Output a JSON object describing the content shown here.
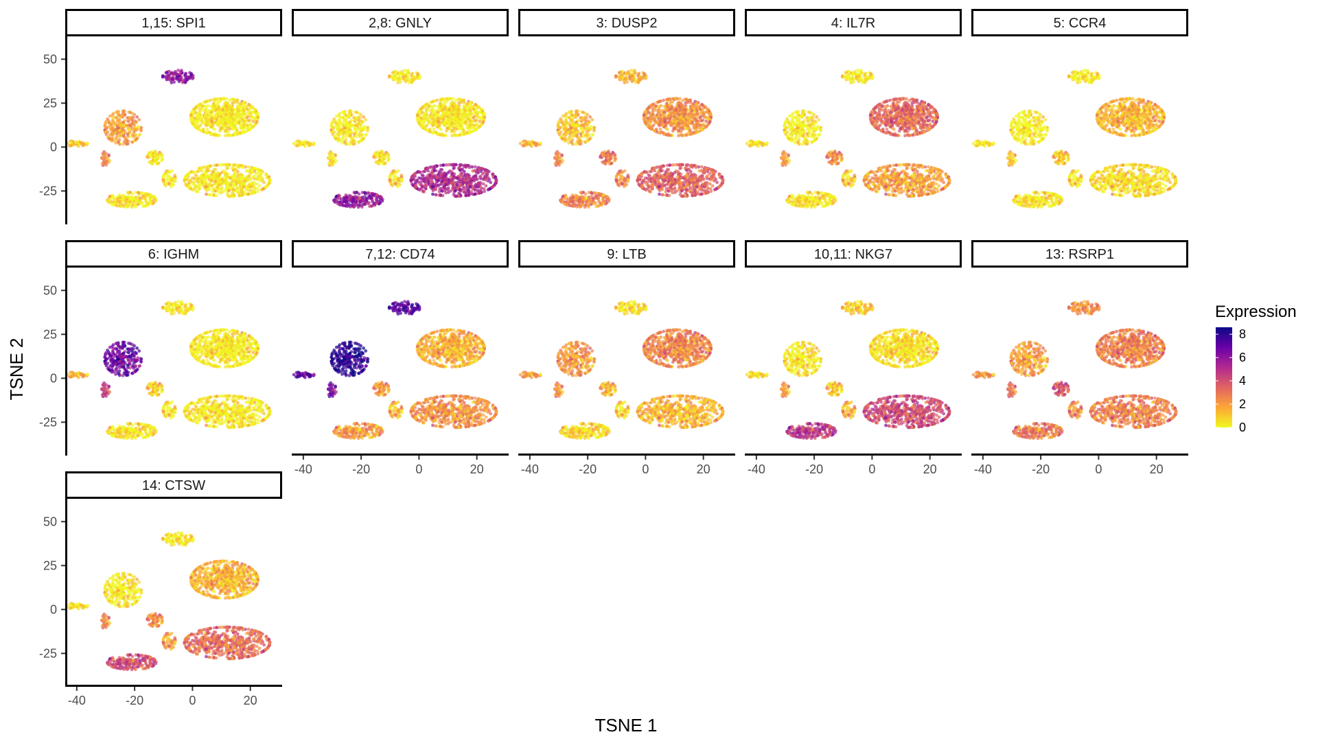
{
  "chart_data": {
    "type": "scatter",
    "subtype": "faceted tSNE feature plot",
    "xlabel": "TSNE 1",
    "ylabel": "TSNE 2",
    "xlim": [
      -44,
      31
    ],
    "ylim": [
      -44,
      63
    ],
    "x_ticks": [
      -40,
      -20,
      0,
      20
    ],
    "y_ticks": [
      50,
      25,
      0,
      -25
    ],
    "x_tick_labels": [
      "-40",
      "-20",
      "0",
      "20"
    ],
    "y_tick_labels": [
      "50",
      "25",
      "0",
      "-25"
    ],
    "legend": {
      "title": "Expression",
      "position": "right",
      "range": [
        0,
        8.6
      ],
      "ticks": [
        8,
        6,
        4,
        2,
        0
      ],
      "tick_labels": [
        "8",
        "6",
        "4",
        "2",
        "0"
      ],
      "colors": [
        "#f0f921",
        "#fca636",
        "#e16462",
        "#b12a90",
        "#6a00a8",
        "#0d0887"
      ]
    },
    "clusters": [
      {
        "name": "A",
        "center": [
          -5,
          40
        ],
        "spread": [
          5,
          3.5
        ]
      },
      {
        "name": "B",
        "center": [
          -24,
          11
        ],
        "spread": [
          6,
          9
        ]
      },
      {
        "name": "C",
        "center": [
          -40,
          2
        ],
        "spread": [
          3.5,
          1.5
        ]
      },
      {
        "name": "D",
        "center": [
          -30,
          -7
        ],
        "spread": [
          1.3,
          4.5
        ]
      },
      {
        "name": "E",
        "center": [
          -13,
          -6
        ],
        "spread": [
          2.5,
          3.5
        ]
      },
      {
        "name": "F",
        "center": [
          -8,
          -18
        ],
        "spread": [
          2,
          4.5
        ]
      },
      {
        "name": "G",
        "center": [
          -21,
          -30
        ],
        "spread": [
          8,
          4
        ]
      },
      {
        "name": "H",
        "center": [
          11,
          17
        ],
        "spread": [
          11,
          10
        ]
      },
      {
        "name": "I",
        "center": [
          12,
          -19
        ],
        "spread": [
          14,
          8.5
        ]
      }
    ],
    "facets": [
      {
        "label": "1,15: SPI1",
        "levels": {
          "A": 6,
          "B": 2,
          "C": 1,
          "D": 2.5,
          "E": 0.3,
          "F": 0.2,
          "G": 0.3,
          "H": 0.2,
          "I": 0.3
        }
      },
      {
        "label": "2,8: GNLY",
        "levels": {
          "A": 0.3,
          "B": 0.3,
          "C": 0.3,
          "D": 0.5,
          "E": 0.5,
          "F": 0.8,
          "G": 5.8,
          "H": 0.3,
          "I": 5.2
        }
      },
      {
        "label": "3: DUSP2",
        "levels": {
          "A": 1.5,
          "B": 1.2,
          "C": 1.5,
          "D": 2.5,
          "E": 3,
          "F": 2.5,
          "G": 2.5,
          "H": 2.3,
          "I": 3.5
        }
      },
      {
        "label": "4: IL7R",
        "levels": {
          "A": 0.2,
          "B": 0.2,
          "C": 0.4,
          "D": 2,
          "E": 2.5,
          "F": 1,
          "G": 0.3,
          "H": 3.3,
          "I": 2
        }
      },
      {
        "label": "5: CCR4",
        "levels": {
          "A": 0.2,
          "B": 0.1,
          "C": 0.2,
          "D": 1,
          "E": 1.2,
          "F": 0.5,
          "G": 0.3,
          "H": 1.5,
          "I": 0.6
        }
      },
      {
        "label": "6: IGHM",
        "levels": {
          "A": 0.3,
          "B": 6.8,
          "C": 1.5,
          "D": 4.5,
          "E": 1,
          "F": 0.4,
          "G": 0.3,
          "H": 0.2,
          "I": 0.3
        }
      },
      {
        "label": "7,12: CD74",
        "levels": {
          "A": 7.2,
          "B": 8.3,
          "C": 7,
          "D": 6.5,
          "E": 2.2,
          "F": 1.5,
          "G": 2,
          "H": 1.6,
          "I": 2.3
        }
      },
      {
        "label": "9: LTB",
        "levels": {
          "A": 0.5,
          "B": 2.2,
          "C": 2,
          "D": 2.2,
          "E": 1.6,
          "F": 0.8,
          "G": 0.6,
          "H": 2.6,
          "I": 1.5
        }
      },
      {
        "label": "10,11: NKG7",
        "levels": {
          "A": 1,
          "B": 0.4,
          "C": 0.5,
          "D": 2,
          "E": 1.2,
          "F": 1.6,
          "G": 4.7,
          "H": 0.5,
          "I": 4.2
        }
      },
      {
        "label": "13: RSRP1",
        "levels": {
          "A": 2.3,
          "B": 2,
          "C": 2.2,
          "D": 3,
          "E": 4,
          "F": 2.5,
          "G": 2.8,
          "H": 2.7,
          "I": 2.7
        }
      },
      {
        "label": "14: CTSW",
        "levels": {
          "A": 0.3,
          "B": 0.3,
          "C": 0.4,
          "D": 2.5,
          "E": 2.5,
          "F": 2,
          "G": 4,
          "H": 1.5,
          "I": 3.2
        }
      }
    ]
  }
}
